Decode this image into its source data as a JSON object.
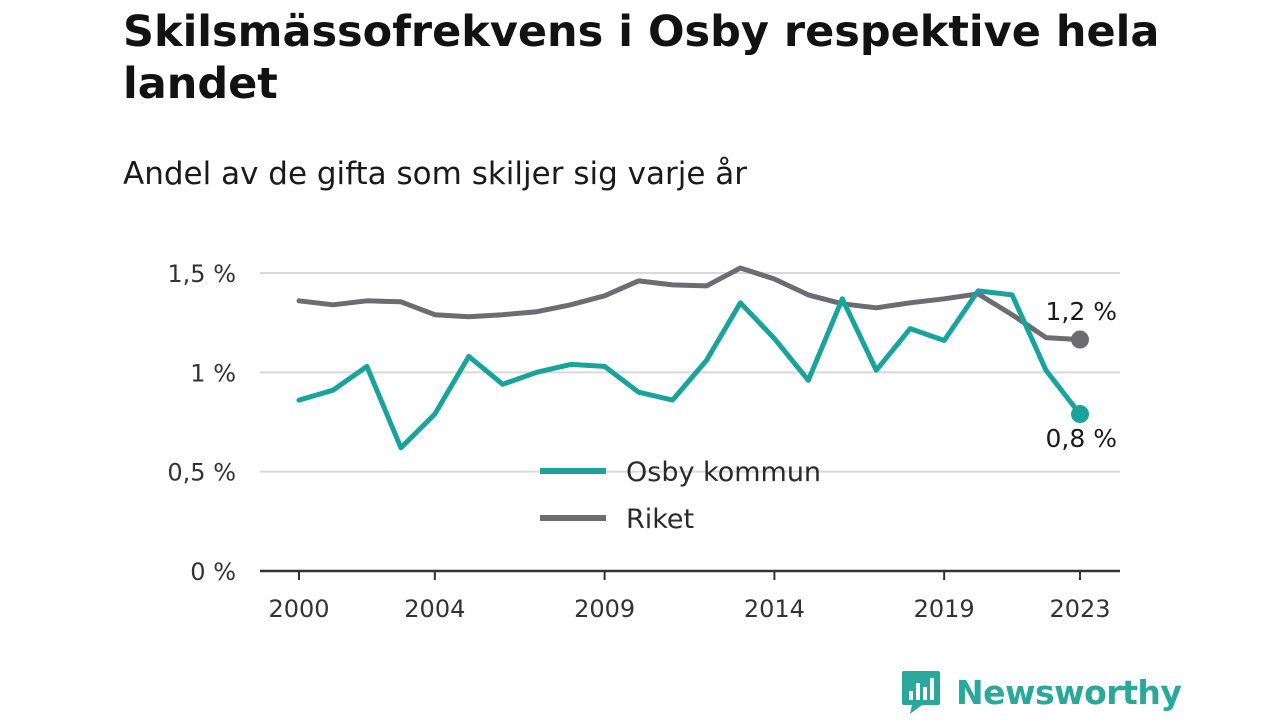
{
  "title": "Skilsmässofrekvens i Osby respektive hela landet",
  "subtitle": "Andel av de gifta som skiljer sig varje år",
  "brand": {
    "name": "Newsworthy",
    "icon": "newsworthy-logo-icon",
    "color": "#2aa89b"
  },
  "colors": {
    "osby": "#1aa39a",
    "riket": "#6d6d71",
    "grid": "#d9d9d9",
    "axis": "#333333"
  },
  "end_labels": {
    "riket": "1,2 %",
    "osby": "0,8 %"
  },
  "chart_data": {
    "type": "line",
    "title": "Skilsmässofrekvens i Osby respektive hela landet",
    "subtitle": "Andel av de gifta som skiljer sig varje år",
    "xlabel": "",
    "ylabel": "",
    "x": [
      2000,
      2001,
      2002,
      2003,
      2004,
      2005,
      2006,
      2007,
      2008,
      2009,
      2010,
      2011,
      2012,
      2013,
      2014,
      2015,
      2016,
      2017,
      2018,
      2019,
      2020,
      2021,
      2022,
      2023
    ],
    "x_ticks": [
      2000,
      2004,
      2009,
      2014,
      2019,
      2023
    ],
    "x_tick_labels": [
      "2000",
      "2004",
      "2009",
      "2014",
      "2019",
      "2023"
    ],
    "ylim": [
      0,
      1.5
    ],
    "y_ticks": [
      0,
      0.5,
      1,
      1.5
    ],
    "y_tick_labels": [
      "0 %",
      "0,5 %",
      "1 %",
      "1,5 %"
    ],
    "grid": "horizontal",
    "legend_position": "center-bottom",
    "series": [
      {
        "name": "Osby kommun",
        "color": "#1aa39a",
        "values": [
          0.86,
          0.91,
          1.03,
          0.62,
          0.79,
          1.08,
          0.94,
          1.0,
          1.04,
          1.03,
          0.9,
          0.86,
          1.06,
          1.35,
          1.17,
          0.96,
          1.37,
          1.01,
          1.22,
          1.16,
          1.41,
          1.39,
          1.01,
          0.79
        ]
      },
      {
        "name": "Riket",
        "color": "#6d6d71",
        "values": [
          1.36,
          1.34,
          1.36,
          1.355,
          1.29,
          1.28,
          1.29,
          1.305,
          1.34,
          1.385,
          1.46,
          1.44,
          1.435,
          1.525,
          1.47,
          1.39,
          1.345,
          1.325,
          1.35,
          1.37,
          1.395,
          1.29,
          1.175,
          1.165
        ]
      }
    ]
  }
}
